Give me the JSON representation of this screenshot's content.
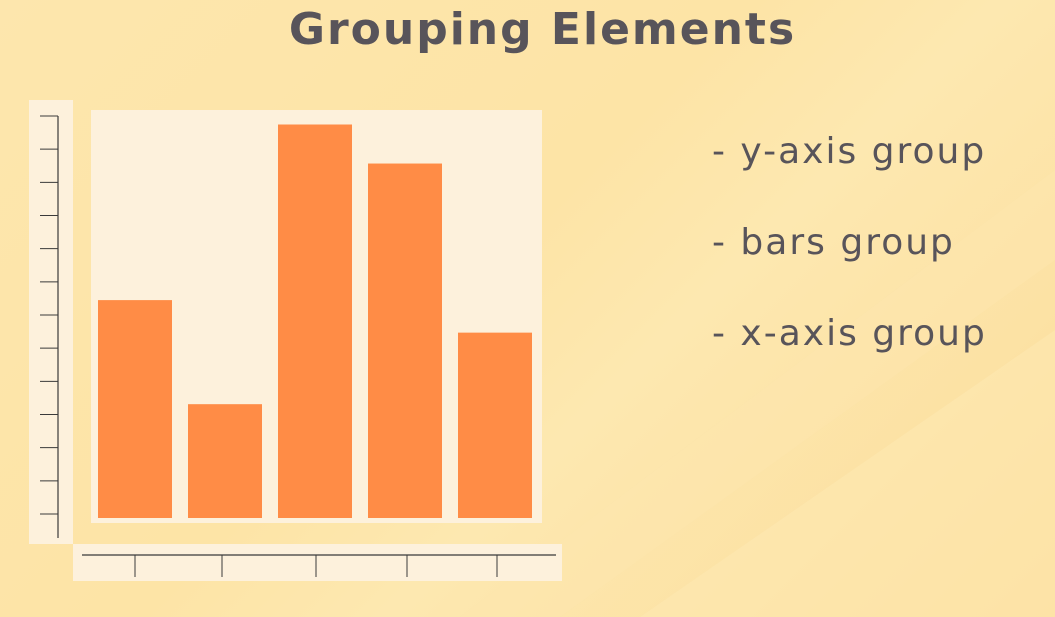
{
  "title": "Grouping Elements",
  "legend": [
    "- y-axis group",
    "- bars group",
    "- x-axis group"
  ],
  "colors": {
    "background": "#fde4a6",
    "group_box": "#fdf1dc",
    "bar": "#ff8c46",
    "axis": "#3a3a3a",
    "text": "#58545a"
  },
  "chart_data": {
    "type": "bar",
    "categories": [
      "",
      "",
      "",
      "",
      ""
    ],
    "values": [
      6.7,
      3.5,
      12.1,
      10.9,
      5.7
    ],
    "ylim": [
      0,
      12.3
    ],
    "y_ticks": 13,
    "x_ticks": 5,
    "title": "",
    "xlabel": "",
    "ylabel": "",
    "grid": false
  }
}
